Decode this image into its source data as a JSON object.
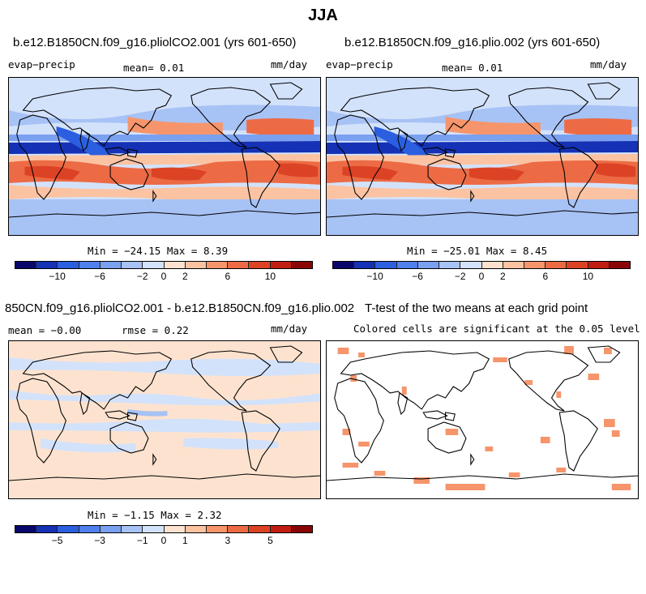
{
  "page_title": "JJA",
  "panels": [
    {
      "title": "b.e12.B1850CN.f09_g16.pliolCO2.001 (yrs 601-650)",
      "var": "evap−precip",
      "stat1": "mean=    0.01",
      "units": "mm/day",
      "minmax": "Min = −24.15 Max =    8.39"
    },
    {
      "title": "b.e12.B1850CN.f09_g16.plio.002 (yrs 601-650)",
      "var": "evap−precip",
      "stat1": "mean=    0.01",
      "units": "mm/day",
      "minmax": "Min = −25.01 Max =    8.45"
    },
    {
      "title": "850CN.f09_g16.pliolCO2.001 - b.e12.B1850CN.f09_g16.plio.002",
      "stat1": "mean =  −0.00",
      "stat2": "rmse =   0.22",
      "units": "mm/day",
      "minmax": "Min =  −1.15 Max =   2.32"
    },
    {
      "title": "T-test of the two means at each grid point",
      "subtitle": "Colored cells are significant at the 0.05 level"
    }
  ],
  "colorbar_full": {
    "colors": [
      "#08086b",
      "#1531b5",
      "#2b5fe0",
      "#4f80ec",
      "#7aa0f0",
      "#a7c2f5",
      "#d3e2fb",
      "#fde3cf",
      "#fcc3a2",
      "#f6956b",
      "#ec6b45",
      "#dc4325",
      "#c21d12",
      "#8a0606"
    ],
    "ticks": [
      "−10",
      "−6",
      "−2",
      "0",
      "2",
      "6",
      "10"
    ]
  },
  "colorbar_diff": {
    "colors": [
      "#08086b",
      "#1531b5",
      "#2b5fe0",
      "#4f80ec",
      "#7aa0f0",
      "#a7c2f5",
      "#d3e2fb",
      "#fde3cf",
      "#fcc3a2",
      "#f6956b",
      "#ec6b45",
      "#dc4325",
      "#c21d12",
      "#8a0606"
    ],
    "ticks": [
      "−5",
      "−3",
      "−1",
      "0",
      "1",
      "3",
      "5"
    ]
  }
}
